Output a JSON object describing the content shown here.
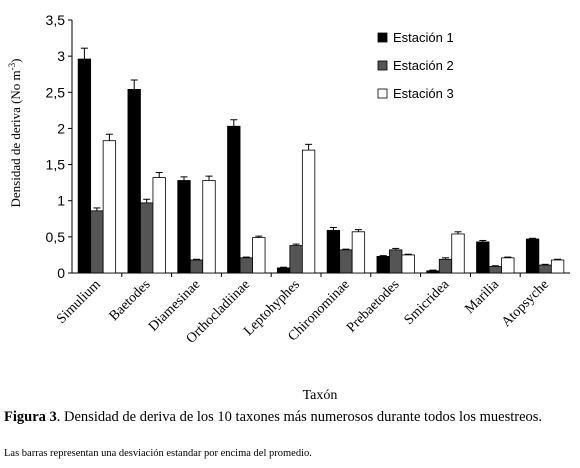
{
  "chart_data": {
    "type": "bar",
    "categories": [
      "Simulium",
      "Baetodes",
      "Diamesinae",
      "Orthocladiinae",
      "Leptohyphes",
      "Chironominae",
      "Prebaetodes",
      "Smicridea",
      "Marilia",
      "Atopsyche"
    ],
    "series": [
      {
        "name": "Estación 1",
        "color": "#000000",
        "values": [
          2.96,
          2.54,
          1.28,
          2.03,
          0.07,
          0.59,
          0.23,
          0.03,
          0.43,
          0.47
        ],
        "errors": [
          0.15,
          0.13,
          0.05,
          0.09,
          0.01,
          0.04,
          0.01,
          0.01,
          0.02,
          0.01
        ]
      },
      {
        "name": "Estación 2",
        "color": "#555555",
        "values": [
          0.86,
          0.97,
          0.18,
          0.21,
          0.38,
          0.32,
          0.32,
          0.19,
          0.09,
          0.11
        ],
        "errors": [
          0.04,
          0.05,
          0.01,
          0.01,
          0.02,
          0.01,
          0.02,
          0.02,
          0.01,
          0.01
        ]
      },
      {
        "name": "Estación 3",
        "color": "#ffffff",
        "values": [
          1.83,
          1.32,
          1.28,
          0.49,
          1.7,
          0.57,
          0.25,
          0.54,
          0.21,
          0.18
        ],
        "errors": [
          0.09,
          0.07,
          0.06,
          0.02,
          0.08,
          0.03,
          0.01,
          0.03,
          0.01,
          0.01
        ]
      }
    ],
    "title": "",
    "xlabel": "Taxón",
    "ylabel": "Densidad de deriva (No m",
    "ylabel_sup": "-3",
    "ylabel_end": ")",
    "ylim": [
      0,
      3.5
    ],
    "yticks": [
      "0",
      "0,5",
      "1",
      "1,5",
      "2",
      "2,5",
      "3",
      "3,5"
    ],
    "legend": "top-right",
    "grid": false
  },
  "caption": {
    "label": "Figura 3",
    "text": ". Densidad de deriva de los 10 taxones más numerosos durante todos los muestreos.",
    "note": "Las barras representan una desviación estandar por encima del promedio."
  }
}
